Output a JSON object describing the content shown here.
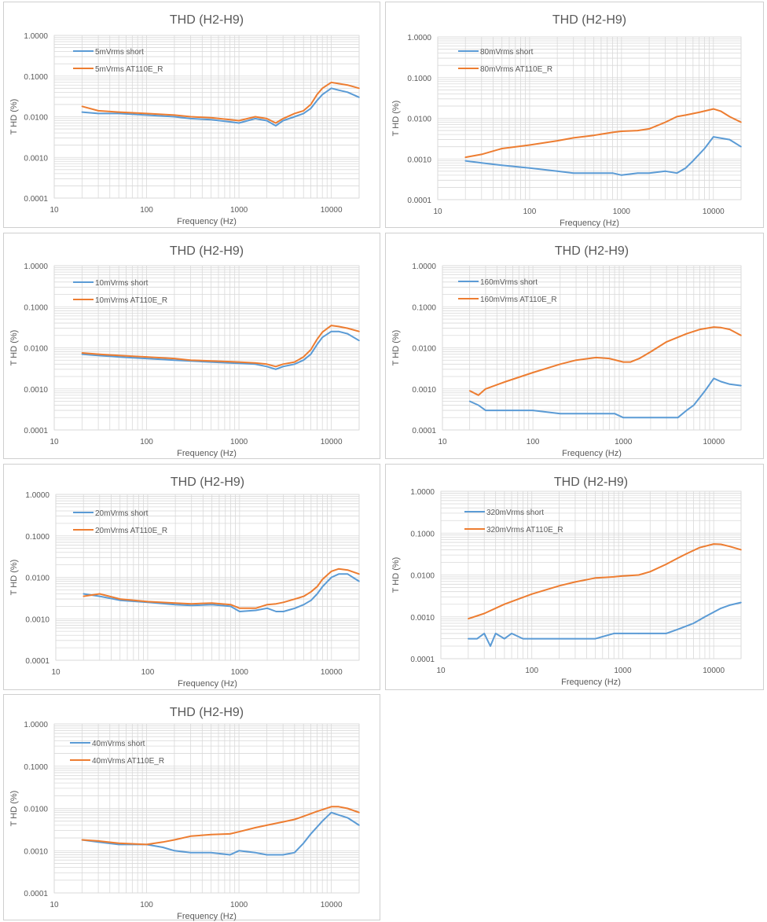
{
  "colors": {
    "short": "#5B9BD5",
    "at110": "#ED7D31",
    "grid": "#d9d9d9",
    "text": "#595959"
  },
  "chart_data": [
    {
      "type": "line",
      "title": "THD (H2-H9)",
      "xlabel": "Frequency (Hz)",
      "ylabel": "T HD (%)",
      "x_scale": "log",
      "y_scale": "log",
      "xlim": [
        10,
        20000
      ],
      "ylim": [
        0.0001,
        1
      ],
      "xticks": [
        "10",
        "100",
        "1000",
        "10000"
      ],
      "yticks": [
        "0.0001",
        "0.0010",
        "0.0100",
        "0.1000",
        "1.0000"
      ],
      "grid": true,
      "legend": "top-left",
      "series": [
        {
          "name": "5mVrms short",
          "x": [
            20,
            30,
            50,
            100,
            200,
            300,
            500,
            800,
            1000,
            1500,
            2000,
            2500,
            3000,
            4000,
            5000,
            6000,
            7000,
            8000,
            10000,
            12000,
            15000,
            20000
          ],
          "y": [
            0.013,
            0.012,
            0.012,
            0.011,
            0.01,
            0.009,
            0.0085,
            0.0075,
            0.007,
            0.009,
            0.008,
            0.006,
            0.008,
            0.01,
            0.012,
            0.016,
            0.025,
            0.035,
            0.05,
            0.045,
            0.04,
            0.03
          ]
        },
        {
          "name": "5mVrms AT110E_R",
          "x": [
            20,
            30,
            50,
            100,
            200,
            300,
            500,
            800,
            1000,
            1500,
            2000,
            2500,
            3000,
            4000,
            5000,
            6000,
            7000,
            8000,
            10000,
            12000,
            15000,
            20000
          ],
          "y": [
            0.018,
            0.014,
            0.013,
            0.012,
            0.011,
            0.01,
            0.0095,
            0.0085,
            0.008,
            0.01,
            0.009,
            0.007,
            0.009,
            0.012,
            0.014,
            0.02,
            0.035,
            0.05,
            0.07,
            0.065,
            0.06,
            0.05
          ]
        }
      ]
    },
    {
      "type": "line",
      "title": "THD (H2-H9)",
      "xlabel": "Frequency (Hz)",
      "ylabel": "T HD (%)",
      "x_scale": "log",
      "y_scale": "log",
      "xlim": [
        10,
        20000
      ],
      "ylim": [
        0.0001,
        1
      ],
      "xticks": [
        "10",
        "100",
        "1000",
        "10000"
      ],
      "yticks": [
        "0.0001",
        "0.0010",
        "0.0100",
        "0.1000",
        "1.0000"
      ],
      "grid": true,
      "legend": "top-left",
      "series": [
        {
          "name": "80mVrms short",
          "x": [
            20,
            30,
            50,
            100,
            200,
            300,
            500,
            800,
            1000,
            1500,
            2000,
            3000,
            4000,
            5000,
            6000,
            8000,
            10000,
            15000,
            20000
          ],
          "y": [
            0.0009,
            0.0008,
            0.0007,
            0.0006,
            0.0005,
            0.00045,
            0.00045,
            0.00045,
            0.0004,
            0.00045,
            0.00045,
            0.0005,
            0.00045,
            0.0006,
            0.0009,
            0.0018,
            0.0035,
            0.003,
            0.002
          ]
        },
        {
          "name": "80mVrms AT110E_R",
          "x": [
            20,
            30,
            50,
            100,
            200,
            300,
            500,
            800,
            1000,
            1500,
            2000,
            3000,
            4000,
            5000,
            7000,
            10000,
            12000,
            15000,
            20000
          ],
          "y": [
            0.0011,
            0.0013,
            0.0018,
            0.0022,
            0.0028,
            0.0033,
            0.0038,
            0.0045,
            0.0048,
            0.005,
            0.0055,
            0.008,
            0.011,
            0.012,
            0.014,
            0.017,
            0.015,
            0.011,
            0.008
          ]
        }
      ]
    },
    {
      "type": "line",
      "title": "THD (H2-H9)",
      "xlabel": "Frequency (Hz)",
      "ylabel": "T HD (%)",
      "x_scale": "log",
      "y_scale": "log",
      "xlim": [
        10,
        20000
      ],
      "ylim": [
        0.0001,
        1
      ],
      "xticks": [
        "10",
        "100",
        "1000",
        "10000"
      ],
      "yticks": [
        "0.0001",
        "0.0010",
        "0.0100",
        "0.1000",
        "1.0000"
      ],
      "grid": true,
      "legend": "top-left",
      "series": [
        {
          "name": "10mVrms short",
          "x": [
            20,
            30,
            50,
            100,
            200,
            300,
            500,
            800,
            1000,
            1500,
            2000,
            2500,
            3000,
            4000,
            5000,
            6000,
            7000,
            8000,
            10000,
            12000,
            15000,
            20000
          ],
          "y": [
            0.007,
            0.0065,
            0.006,
            0.0055,
            0.005,
            0.0048,
            0.0045,
            0.0043,
            0.0042,
            0.004,
            0.0035,
            0.003,
            0.0035,
            0.004,
            0.005,
            0.007,
            0.012,
            0.018,
            0.025,
            0.025,
            0.022,
            0.015
          ]
        },
        {
          "name": "10mVrms AT110E_R",
          "x": [
            20,
            30,
            50,
            100,
            200,
            300,
            500,
            800,
            1000,
            1500,
            2000,
            2500,
            3000,
            4000,
            5000,
            6000,
            7000,
            8000,
            10000,
            12000,
            15000,
            20000
          ],
          "y": [
            0.0075,
            0.007,
            0.0065,
            0.006,
            0.0055,
            0.005,
            0.0048,
            0.0046,
            0.0045,
            0.0043,
            0.004,
            0.0035,
            0.004,
            0.0045,
            0.006,
            0.009,
            0.016,
            0.024,
            0.035,
            0.033,
            0.03,
            0.025
          ]
        }
      ]
    },
    {
      "type": "line",
      "title": "THD (H2-H9)",
      "xlabel": "Frequency (Hz)",
      "ylabel": "T HD (%)",
      "x_scale": "log",
      "y_scale": "log",
      "xlim": [
        10,
        20000
      ],
      "ylim": [
        0.0001,
        1
      ],
      "xticks": [
        "10",
        "100",
        "1000",
        "10000"
      ],
      "yticks": [
        "0.0001",
        "0.0010",
        "0.0100",
        "0.1000",
        "1.0000"
      ],
      "grid": true,
      "legend": "top-left",
      "series": [
        {
          "name": "160mVrms short",
          "x": [
            20,
            25,
            30,
            40,
            60,
            100,
            200,
            300,
            500,
            800,
            1000,
            1500,
            2000,
            3000,
            4000,
            5000,
            6000,
            8000,
            10000,
            12000,
            15000,
            20000
          ],
          "y": [
            0.0005,
            0.0004,
            0.0003,
            0.0003,
            0.0003,
            0.0003,
            0.00025,
            0.00025,
            0.00025,
            0.00025,
            0.0002,
            0.0002,
            0.0002,
            0.0002,
            0.0002,
            0.0003,
            0.0004,
            0.0009,
            0.0018,
            0.0015,
            0.0013,
            0.0012
          ]
        },
        {
          "name": "160mVrms AT110E_R",
          "x": [
            20,
            25,
            30,
            50,
            100,
            200,
            300,
            500,
            700,
            1000,
            1200,
            1500,
            2000,
            3000,
            5000,
            7000,
            10000,
            12000,
            15000,
            20000
          ],
          "y": [
            0.0009,
            0.0007,
            0.001,
            0.0015,
            0.0025,
            0.004,
            0.005,
            0.0058,
            0.0055,
            0.0045,
            0.0045,
            0.0055,
            0.008,
            0.014,
            0.022,
            0.028,
            0.032,
            0.031,
            0.028,
            0.02
          ]
        }
      ]
    },
    {
      "type": "line",
      "title": "THD (H2-H9)",
      "xlabel": "Frequency (Hz)",
      "ylabel": "T HD (%)",
      "x_scale": "log",
      "y_scale": "log",
      "xlim": [
        10,
        20000
      ],
      "ylim": [
        0.0001,
        1
      ],
      "xticks": [
        "10",
        "100",
        "1000",
        "10000"
      ],
      "yticks": [
        "0.0001",
        "0.0010",
        "0.0100",
        "0.1000",
        "1.0000"
      ],
      "grid": true,
      "legend": "top-left",
      "series": [
        {
          "name": "20mVrms short",
          "x": [
            20,
            30,
            50,
            100,
            200,
            300,
            500,
            800,
            1000,
            1500,
            2000,
            2500,
            3000,
            4000,
            5000,
            6000,
            7000,
            8000,
            10000,
            12000,
            15000,
            20000
          ],
          "y": [
            0.004,
            0.0035,
            0.0028,
            0.0025,
            0.0022,
            0.0021,
            0.0022,
            0.002,
            0.0015,
            0.0016,
            0.0018,
            0.0015,
            0.0015,
            0.0018,
            0.0022,
            0.0028,
            0.004,
            0.006,
            0.01,
            0.012,
            0.012,
            0.008
          ]
        },
        {
          "name": "20mVrms AT110E_R",
          "x": [
            20,
            30,
            50,
            100,
            200,
            300,
            500,
            800,
            1000,
            1500,
            2000,
            2500,
            3000,
            4000,
            5000,
            6000,
            7000,
            8000,
            10000,
            12000,
            15000,
            20000
          ],
          "y": [
            0.0035,
            0.004,
            0.003,
            0.0026,
            0.0024,
            0.0023,
            0.0024,
            0.0022,
            0.0018,
            0.0018,
            0.0022,
            0.0023,
            0.0025,
            0.003,
            0.0035,
            0.0045,
            0.006,
            0.009,
            0.014,
            0.016,
            0.015,
            0.012
          ]
        }
      ]
    },
    {
      "type": "line",
      "title": "THD (H2-H9)",
      "xlabel": "Frequency (Hz)",
      "ylabel": "T HD (%)",
      "x_scale": "log",
      "y_scale": "log",
      "xlim": [
        10,
        20000
      ],
      "ylim": [
        0.0001,
        1
      ],
      "xticks": [
        "10",
        "100",
        "1000",
        "10000"
      ],
      "yticks": [
        "0.0001",
        "0.0010",
        "0.0100",
        "0.1000",
        "1.0000"
      ],
      "grid": true,
      "legend": "top-left",
      "series": [
        {
          "name": "320mVrms short",
          "x": [
            20,
            25,
            30,
            35,
            40,
            50,
            60,
            80,
            100,
            200,
            300,
            500,
            800,
            1000,
            1500,
            2000,
            3000,
            4000,
            5000,
            6000,
            8000,
            10000,
            12000,
            15000,
            20000
          ],
          "y": [
            0.0003,
            0.0003,
            0.0004,
            0.0002,
            0.0004,
            0.0003,
            0.0004,
            0.0003,
            0.0003,
            0.0003,
            0.0003,
            0.0003,
            0.0004,
            0.0004,
            0.0004,
            0.0004,
            0.0004,
            0.0005,
            0.0006,
            0.0007,
            0.001,
            0.0013,
            0.0016,
            0.0019,
            0.0022
          ]
        },
        {
          "name": "320mVrms AT110E_R",
          "x": [
            20,
            30,
            50,
            100,
            200,
            300,
            500,
            800,
            1000,
            1500,
            2000,
            3000,
            4000,
            5000,
            7000,
            10000,
            12000,
            15000,
            20000
          ],
          "y": [
            0.0009,
            0.0012,
            0.002,
            0.0035,
            0.0055,
            0.0068,
            0.0085,
            0.009,
            0.0095,
            0.01,
            0.012,
            0.018,
            0.025,
            0.032,
            0.045,
            0.055,
            0.054,
            0.048,
            0.04
          ]
        }
      ]
    },
    {
      "type": "line",
      "title": "THD (H2-H9)",
      "xlabel": "Frequency (Hz)",
      "ylabel": "T HD (%)",
      "x_scale": "log",
      "y_scale": "log",
      "xlim": [
        10,
        20000
      ],
      "ylim": [
        0.0001,
        1
      ],
      "xticks": [
        "10",
        "100",
        "1000",
        "10000"
      ],
      "yticks": [
        "0.0001",
        "0.0010",
        "0.0100",
        "0.1000",
        "1.0000"
      ],
      "grid": true,
      "legend": "top-left",
      "series": [
        {
          "name": "40mVrms short",
          "x": [
            20,
            30,
            50,
            100,
            150,
            200,
            300,
            500,
            800,
            1000,
            1500,
            2000,
            3000,
            4000,
            5000,
            6000,
            8000,
            10000,
            12000,
            15000,
            20000
          ],
          "y": [
            0.0018,
            0.0016,
            0.0014,
            0.0014,
            0.0012,
            0.001,
            0.0009,
            0.0009,
            0.0008,
            0.001,
            0.0009,
            0.0008,
            0.0008,
            0.0009,
            0.0015,
            0.0025,
            0.005,
            0.008,
            0.007,
            0.006,
            0.004
          ]
        },
        {
          "name": "40mVrms AT110E_R",
          "x": [
            20,
            30,
            50,
            100,
            150,
            200,
            300,
            500,
            800,
            1000,
            1500,
            2000,
            3000,
            4000,
            5000,
            7000,
            10000,
            12000,
            15000,
            20000
          ],
          "y": [
            0.0018,
            0.0017,
            0.0015,
            0.0014,
            0.0016,
            0.0018,
            0.0022,
            0.0024,
            0.0025,
            0.0028,
            0.0035,
            0.004,
            0.0048,
            0.0055,
            0.0065,
            0.0085,
            0.011,
            0.011,
            0.01,
            0.008
          ]
        }
      ]
    }
  ]
}
